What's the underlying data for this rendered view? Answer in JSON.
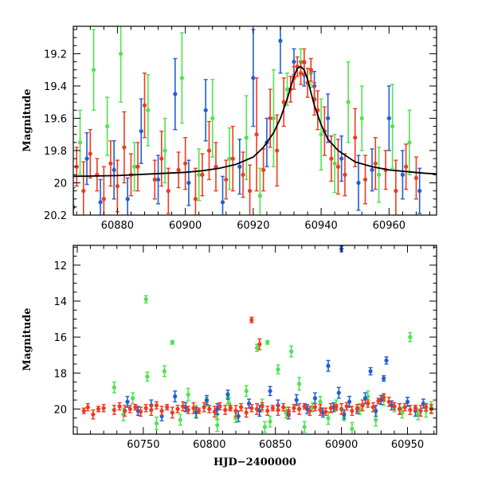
{
  "chart_data": [
    {
      "id": "zoom",
      "type": "scatter",
      "title": "",
      "xlabel": "",
      "ylabel": "Magnitude",
      "xlim": [
        60867,
        60974
      ],
      "ylim": [
        19.03,
        20.2
      ],
      "y_inverted": true,
      "grid": false,
      "xticks": [
        60880,
        60900,
        60920,
        60940,
        60960
      ],
      "yticks": [
        19.2,
        19.4,
        19.6,
        19.8,
        20,
        20.2
      ],
      "xtick_labels": [
        "60880",
        "60900",
        "60920",
        "60940",
        "60960"
      ],
      "ytick_labels": [
        "19.2",
        "19.4",
        "19.6",
        "19.8",
        "20",
        "20.2"
      ],
      "model_curve": {
        "name": "microlensing model",
        "color": "#000000",
        "x": [
          60867,
          60880,
          60890,
          60900,
          60905,
          60910,
          60915,
          60920,
          60923,
          60926,
          60928,
          60930,
          60931,
          60932,
          60933,
          60934,
          60935,
          60936,
          60937,
          60938,
          60940,
          60942,
          60945,
          60950,
          60955,
          60960,
          60965,
          60970,
          60974
        ],
        "y": [
          19.96,
          19.955,
          19.945,
          19.935,
          19.925,
          19.91,
          19.885,
          19.84,
          19.78,
          19.69,
          19.6,
          19.48,
          19.41,
          19.34,
          19.29,
          19.28,
          19.3,
          19.36,
          19.44,
          19.52,
          19.64,
          19.73,
          19.8,
          19.87,
          19.9,
          19.92,
          19.93,
          19.94,
          19.945
        ]
      },
      "series": [
        {
          "name": "red filter",
          "color": "#f03a1e",
          "x": [
            60868,
            60870,
            60872,
            60874,
            60876,
            60878,
            60880,
            60882,
            60884,
            60886,
            60888,
            60891,
            60893,
            60895,
            60898,
            60900,
            60903,
            60905,
            60907,
            60909,
            60912,
            60914,
            60917,
            60919,
            60921,
            60923,
            60925,
            60927,
            60929,
            60931,
            60932,
            60933,
            60934,
            60935,
            60936,
            60937,
            60938,
            60939,
            60941,
            60943,
            60945,
            60947,
            60950,
            60953,
            60956,
            60959,
            60962,
            60965,
            60968
          ],
          "y": [
            19.9,
            20.05,
            19.82,
            19.95,
            20.1,
            19.88,
            20.02,
            19.78,
            19.95,
            19.9,
            19.52,
            19.98,
            19.85,
            20.05,
            19.92,
            19.88,
            20.1,
            19.95,
            19.8,
            19.9,
            19.98,
            19.85,
            19.95,
            20.05,
            19.7,
            19.92,
            19.6,
            19.8,
            19.5,
            19.42,
            19.35,
            19.28,
            19.32,
            19.25,
            19.38,
            19.3,
            19.48,
            19.55,
            19.68,
            19.85,
            19.9,
            19.95,
            19.72,
            19.98,
            19.88,
            19.92,
            20.05,
            19.9,
            19.97
          ],
          "yerr": [
            0.12,
            0.18,
            0.15,
            0.1,
            0.2,
            0.14,
            0.16,
            0.22,
            0.13,
            0.15,
            0.2,
            0.12,
            0.17,
            0.14,
            0.11,
            0.16,
            0.19,
            0.13,
            0.18,
            0.15,
            0.12,
            0.2,
            0.14,
            0.16,
            0.35,
            0.13,
            0.18,
            0.22,
            0.15,
            0.08,
            0.07,
            0.06,
            0.07,
            0.08,
            0.09,
            0.07,
            0.1,
            0.12,
            0.15,
            0.14,
            0.17,
            0.13,
            0.18,
            0.15,
            0.16,
            0.12,
            0.19,
            0.14,
            0.13
          ]
        },
        {
          "name": "green filter",
          "color": "#4fe34f",
          "x": [
            60869,
            60873,
            60877,
            60881,
            60885,
            60889,
            60894,
            60899,
            60904,
            60908,
            60913,
            60918,
            60922,
            60926,
            60930,
            60934,
            60937,
            60940,
            60944,
            60948,
            60952,
            60957,
            60961,
            60966
          ],
          "y": [
            19.75,
            19.3,
            19.65,
            19.2,
            19.9,
            19.55,
            19.8,
            19.35,
            19.95,
            19.6,
            19.85,
            19.72,
            20.08,
            19.6,
            19.42,
            19.25,
            19.32,
            19.7,
            19.88,
            19.5,
            19.6,
            19.95,
            19.65,
            19.75
          ],
          "yerr": [
            0.2,
            0.25,
            0.18,
            0.3,
            0.15,
            0.22,
            0.2,
            0.28,
            0.16,
            0.24,
            0.19,
            0.26,
            0.17,
            0.3,
            0.1,
            0.08,
            0.09,
            0.22,
            0.18,
            0.25,
            0.2,
            0.17,
            0.26,
            0.2
          ]
        },
        {
          "name": "blue filter",
          "color": "#1f5fd6",
          "x": [
            60867,
            60871,
            60875,
            60879,
            60883,
            60887,
            60892,
            60897,
            60901,
            60906,
            60911,
            60916,
            60920,
            60924,
            60928,
            60932,
            60935,
            60938,
            60942,
            60946,
            60951,
            60955,
            60960,
            60964,
            60969
          ],
          "y": [
            20.15,
            19.85,
            20.12,
            19.92,
            20.1,
            19.68,
            19.98,
            19.45,
            20.0,
            19.55,
            20.12,
            19.9,
            19.35,
            19.75,
            19.12,
            19.25,
            19.33,
            19.4,
            19.6,
            19.85,
            20.0,
            19.92,
            19.6,
            19.95,
            20.05
          ],
          "yerr": [
            0.12,
            0.16,
            0.14,
            0.18,
            0.13,
            0.2,
            0.15,
            0.22,
            0.14,
            0.19,
            0.16,
            0.17,
            0.3,
            0.15,
            0.2,
            0.08,
            0.07,
            0.09,
            0.15,
            0.14,
            0.17,
            0.13,
            0.2,
            0.15,
            0.14
          ]
        }
      ]
    },
    {
      "id": "full",
      "type": "scatter",
      "title": "",
      "xlabel": "HJD−2400000",
      "ylabel": "Magnitude",
      "xlim": [
        60697,
        60972
      ],
      "ylim": [
        10.9,
        21.4
      ],
      "y_inverted": true,
      "grid": false,
      "xticks": [
        60750,
        60800,
        60850,
        60900,
        60950
      ],
      "yticks": [
        12,
        14,
        16,
        18,
        20
      ],
      "xtick_labels": [
        "60750",
        "60800",
        "60850",
        "60900",
        "60950"
      ],
      "ytick_labels": [
        "12",
        "14",
        "16",
        "18",
        "20"
      ],
      "series": [
        {
          "name": "red filter",
          "color": "#f03a1e",
          "x": [
            60705,
            60708,
            60712,
            60716,
            60720,
            60728,
            60732,
            60736,
            60740,
            60744,
            60748,
            60752,
            60756,
            60760,
            60764,
            60768,
            60772,
            60776,
            60780,
            60784,
            60788,
            60792,
            60796,
            60800,
            60804,
            60808,
            60812,
            60816,
            60820,
            60824,
            60828,
            60832,
            60836,
            60840,
            60844,
            60848,
            60852,
            60856,
            60860,
            60864,
            60868,
            60872,
            60876,
            60880,
            60884,
            60888,
            60892,
            60896,
            60900,
            60904,
            60908,
            60912,
            60916,
            60920,
            60924,
            60928,
            60932,
            60936,
            60940,
            60944,
            60948,
            60952,
            60956,
            60960,
            60964,
            60968,
            60832,
            60838
          ],
          "y": [
            20.1,
            19.9,
            20.3,
            20.0,
            19.95,
            20.05,
            19.85,
            20.1,
            20.0,
            19.9,
            20.15,
            19.95,
            20.05,
            19.8,
            20.1,
            19.9,
            20.2,
            20.0,
            19.85,
            20.05,
            19.95,
            20.1,
            19.9,
            20.0,
            20.15,
            19.85,
            20.05,
            19.95,
            20.1,
            19.9,
            20.2,
            19.95,
            20.0,
            19.85,
            20.1,
            19.95,
            20.05,
            19.9,
            20.15,
            19.95,
            20.0,
            19.85,
            20.1,
            19.9,
            20.05,
            20.15,
            19.95,
            19.9,
            20.0,
            19.85,
            20.1,
            19.95,
            19.8,
            19.7,
            19.9,
            19.55,
            19.35,
            19.6,
            19.85,
            20.0,
            19.9,
            20.05,
            19.95,
            20.1,
            19.9,
            20.0,
            15.05,
            16.4
          ],
          "yerr": [
            0.15,
            0.2,
            0.25,
            0.15,
            0.2,
            0.25,
            0.2,
            0.3,
            0.2,
            0.15,
            0.25,
            0.2,
            0.3,
            0.2,
            0.25,
            0.15,
            0.3,
            0.2,
            0.25,
            0.2,
            0.3,
            0.15,
            0.25,
            0.2,
            0.3,
            0.2,
            0.25,
            0.15,
            0.3,
            0.2,
            0.25,
            0.2,
            0.3,
            0.2,
            0.25,
            0.15,
            0.3,
            0.2,
            0.25,
            0.2,
            0.3,
            0.15,
            0.25,
            0.2,
            0.3,
            0.2,
            0.25,
            0.15,
            0.3,
            0.2,
            0.25,
            0.2,
            0.3,
            0.2,
            0.25,
            0.15,
            0.2,
            0.25,
            0.2,
            0.3,
            0.2,
            0.25,
            0.15,
            0.3,
            0.2,
            0.25,
            0.15,
            0.3
          ]
        },
        {
          "name": "green filter",
          "color": "#4fe34f",
          "x": [
            60728,
            60735,
            60742,
            60752,
            60753,
            60760,
            60766,
            60772,
            60778,
            60784,
            60790,
            60798,
            60806,
            60814,
            60820,
            60828,
            60836,
            60840,
            60846,
            60852,
            60858,
            60862,
            60868,
            60872,
            60878,
            60884,
            60890,
            60896,
            60902,
            60908,
            60914,
            60920,
            60926,
            60932,
            60940,
            60946,
            60952,
            60958,
            60964,
            60968,
            60844,
            60806,
            60815,
            60842
          ],
          "y": [
            18.8,
            20.3,
            19.4,
            13.9,
            18.2,
            20.8,
            17.9,
            16.3,
            20.6,
            19.2,
            20.1,
            19.6,
            20.9,
            19.4,
            20.5,
            19.0,
            16.6,
            19.8,
            20.7,
            17.8,
            20.2,
            16.8,
            18.6,
            21.0,
            19.9,
            19.6,
            20.5,
            19.8,
            20.4,
            21.1,
            20.0,
            19.3,
            20.6,
            19.5,
            19.9,
            20.2,
            16.0,
            20.3,
            20.1,
            19.9,
            16.3,
            20.3,
            19.7,
            21.0
          ],
          "yerr": [
            0.3,
            0.35,
            0.3,
            0.2,
            0.25,
            0.35,
            0.3,
            0.1,
            0.3,
            0.35,
            0.3,
            0.25,
            0.35,
            0.3,
            0.25,
            0.3,
            0.2,
            0.35,
            0.3,
            0.25,
            0.3,
            0.3,
            0.35,
            0.3,
            0.25,
            0.3,
            0.35,
            0.3,
            0.25,
            0.35,
            0.3,
            0.3,
            0.35,
            0.3,
            0.25,
            0.3,
            0.25,
            0.3,
            0.35,
            0.3,
            0.1,
            0.3,
            0.35,
            0.3
          ]
        },
        {
          "name": "blue filter",
          "color": "#1f5fd6",
          "x": [
            60738,
            60746,
            60756,
            60764,
            60774,
            60782,
            60790,
            60798,
            60806,
            60814,
            60822,
            60830,
            60838,
            60846,
            60852,
            60860,
            60866,
            60874,
            60880,
            60886,
            60890,
            60894,
            60898,
            60902,
            60906,
            60912,
            60918,
            60922,
            60926,
            60930,
            60934,
            60938,
            60944,
            60950,
            60956,
            60962,
            60900,
            60932
          ],
          "y": [
            19.6,
            20.1,
            19.8,
            20.4,
            19.3,
            19.9,
            20.2,
            19.5,
            20.0,
            19.2,
            20.4,
            19.7,
            20.1,
            19.0,
            19.8,
            20.3,
            19.5,
            20.0,
            19.4,
            20.2,
            17.6,
            19.9,
            19.1,
            20.3,
            19.6,
            20.0,
            19.4,
            17.9,
            20.1,
            19.5,
            17.3,
            19.8,
            20.0,
            19.6,
            20.1,
            19.7,
            11.1,
            18.3
          ],
          "yerr": [
            0.3,
            0.25,
            0.3,
            0.25,
            0.3,
            0.25,
            0.3,
            0.25,
            0.3,
            0.25,
            0.3,
            0.25,
            0.3,
            0.25,
            0.3,
            0.25,
            0.3,
            0.25,
            0.3,
            0.25,
            0.3,
            0.25,
            0.3,
            0.25,
            0.3,
            0.25,
            0.3,
            0.2,
            0.3,
            0.25,
            0.2,
            0.25,
            0.3,
            0.25,
            0.3,
            0.25,
            0.15,
            0.15
          ]
        }
      ]
    }
  ]
}
